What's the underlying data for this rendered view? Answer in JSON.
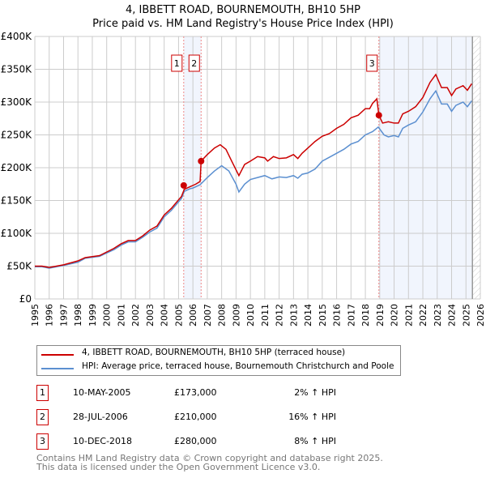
{
  "title": "4, IBBETT ROAD, BOURNEMOUTH, BH10 5HP",
  "subtitle": "Price paid vs. HM Land Registry's House Price Index (HPI)",
  "chart_data": {
    "type": "line",
    "ylim": [
      0,
      400000
    ],
    "xlim": [
      1995,
      2026
    ],
    "yticks": [
      {
        "v": 0,
        "label": "£0"
      },
      {
        "v": 50000,
        "label": "£50K"
      },
      {
        "v": 100000,
        "label": "£100K"
      },
      {
        "v": 150000,
        "label": "£150K"
      },
      {
        "v": 200000,
        "label": "£200K"
      },
      {
        "v": 250000,
        "label": "£250K"
      },
      {
        "v": 300000,
        "label": "£300K"
      },
      {
        "v": 350000,
        "label": "£350K"
      },
      {
        "v": 400000,
        "label": "£400K"
      }
    ],
    "xticks": [
      "1995",
      "1996",
      "1997",
      "1998",
      "1999",
      "2000",
      "2001",
      "2002",
      "2003",
      "2004",
      "2005",
      "2006",
      "2007",
      "2008",
      "2009",
      "2010",
      "2011",
      "2012",
      "2013",
      "2014",
      "2015",
      "2016",
      "2017",
      "2018",
      "2019",
      "2020",
      "2021",
      "2022",
      "2023",
      "2024",
      "2025",
      "2026"
    ],
    "series": [
      {
        "name": "4, IBBETT ROAD, BOURNEMOUTH, BH10 5HP (terraced house)",
        "color": "#cc0000",
        "points": [
          [
            1995,
            50
          ],
          [
            1995.5,
            50
          ],
          [
            1996,
            48
          ],
          [
            1997,
            52
          ],
          [
            1998,
            58
          ],
          [
            1998.5,
            63
          ],
          [
            1999.5,
            66
          ],
          [
            2000.5,
            77
          ],
          [
            2001,
            84
          ],
          [
            2001.5,
            89
          ],
          [
            2002,
            89
          ],
          [
            2002.5,
            96
          ],
          [
            2003,
            105
          ],
          [
            2003.5,
            111
          ],
          [
            2004,
            128
          ],
          [
            2004.5,
            138
          ],
          [
            2005,
            151
          ],
          [
            2005.2,
            156
          ],
          [
            2005.4,
            167
          ],
          [
            2005.8,
            171
          ],
          [
            2006,
            173
          ],
          [
            2006.2,
            175
          ],
          [
            2006.5,
            179
          ],
          [
            2006.57,
            210
          ],
          [
            2007,
            220
          ],
          [
            2007.5,
            230
          ],
          [
            2007.9,
            235
          ],
          [
            2008.3,
            228
          ],
          [
            2008.7,
            210
          ],
          [
            2009.2,
            188
          ],
          [
            2009.6,
            205
          ],
          [
            2010,
            210
          ],
          [
            2010.5,
            217
          ],
          [
            2011,
            215
          ],
          [
            2011.2,
            210
          ],
          [
            2011.6,
            217
          ],
          [
            2012,
            214
          ],
          [
            2012.5,
            215
          ],
          [
            2013,
            220
          ],
          [
            2013.3,
            214
          ],
          [
            2013.6,
            222
          ],
          [
            2014,
            230
          ],
          [
            2014.5,
            240
          ],
          [
            2015,
            248
          ],
          [
            2015.5,
            252
          ],
          [
            2016,
            260
          ],
          [
            2016.5,
            266
          ],
          [
            2017,
            276
          ],
          [
            2017.5,
            280
          ],
          [
            2018,
            290
          ],
          [
            2018.3,
            290
          ],
          [
            2018.5,
            298
          ],
          [
            2018.8,
            305
          ],
          [
            2018.94,
            280
          ],
          [
            2019.2,
            268
          ],
          [
            2019.6,
            270
          ],
          [
            2020,
            268
          ],
          [
            2020.3,
            268
          ],
          [
            2020.6,
            282
          ],
          [
            2021,
            286
          ],
          [
            2021.5,
            293
          ],
          [
            2022,
            307
          ],
          [
            2022.5,
            330
          ],
          [
            2022.9,
            342
          ],
          [
            2023.3,
            322
          ],
          [
            2023.7,
            322
          ],
          [
            2024,
            310
          ],
          [
            2024.3,
            320
          ],
          [
            2024.8,
            325
          ],
          [
            2025.1,
            318
          ],
          [
            2025.4,
            328
          ]
        ]
      },
      {
        "name": "HPI: Average price, terraced house, Bournemouth Christchurch and Poole",
        "color": "#5b8fd0",
        "points": [
          [
            1995,
            49
          ],
          [
            1995.5,
            49
          ],
          [
            1996,
            47
          ],
          [
            1997,
            51
          ],
          [
            1998,
            56
          ],
          [
            1998.5,
            62
          ],
          [
            1999.5,
            65
          ],
          [
            2000.5,
            75
          ],
          [
            2001,
            82
          ],
          [
            2001.5,
            87
          ],
          [
            2002,
            87
          ],
          [
            2002.5,
            94
          ],
          [
            2003,
            102
          ],
          [
            2003.5,
            108
          ],
          [
            2004,
            125
          ],
          [
            2004.5,
            135
          ],
          [
            2005,
            148
          ],
          [
            2005.2,
            153
          ],
          [
            2005.4,
            164
          ],
          [
            2005.8,
            168
          ],
          [
            2006,
            169
          ],
          [
            2006.5,
            174
          ],
          [
            2007,
            185
          ],
          [
            2007.5,
            195
          ],
          [
            2008,
            203
          ],
          [
            2008.5,
            195
          ],
          [
            2009,
            175
          ],
          [
            2009.2,
            163
          ],
          [
            2009.6,
            175
          ],
          [
            2010,
            182
          ],
          [
            2010.5,
            185
          ],
          [
            2011,
            188
          ],
          [
            2011.5,
            183
          ],
          [
            2012,
            186
          ],
          [
            2012.5,
            185
          ],
          [
            2013,
            188
          ],
          [
            2013.3,
            184
          ],
          [
            2013.6,
            190
          ],
          [
            2014,
            192
          ],
          [
            2014.5,
            198
          ],
          [
            2015,
            210
          ],
          [
            2015.5,
            216
          ],
          [
            2016,
            222
          ],
          [
            2016.5,
            228
          ],
          [
            2017,
            236
          ],
          [
            2017.5,
            240
          ],
          [
            2018,
            250
          ],
          [
            2018.5,
            255
          ],
          [
            2018.9,
            262
          ],
          [
            2019.3,
            250
          ],
          [
            2019.6,
            247
          ],
          [
            2020,
            249
          ],
          [
            2020.3,
            247
          ],
          [
            2020.6,
            260
          ],
          [
            2021,
            265
          ],
          [
            2021.5,
            270
          ],
          [
            2022,
            285
          ],
          [
            2022.5,
            305
          ],
          [
            2022.9,
            317
          ],
          [
            2023.3,
            297
          ],
          [
            2023.7,
            297
          ],
          [
            2024,
            286
          ],
          [
            2024.3,
            295
          ],
          [
            2024.8,
            300
          ],
          [
            2025.1,
            293
          ],
          [
            2025.4,
            302
          ]
        ]
      }
    ],
    "sales": [
      {
        "n": "1",
        "x": 2005.36,
        "y": 173
      },
      {
        "n": "2",
        "x": 2006.57,
        "y": 210
      },
      {
        "n": "3",
        "x": 2018.94,
        "y": 280
      }
    ],
    "shaded": [
      [
        2005.36,
        2006.57
      ],
      [
        2018.94,
        2025.45
      ]
    ],
    "forecast_start": 2025.45
  },
  "legend": [
    "4, IBBETT ROAD, BOURNEMOUTH, BH10 5HP (terraced house)",
    "HPI: Average price, terraced house, Bournemouth Christchurch and Poole"
  ],
  "transactions": [
    {
      "n": "1",
      "date": "10-MAY-2005",
      "price": "£173,000",
      "hpi": "2% ↑ HPI"
    },
    {
      "n": "2",
      "date": "28-JUL-2006",
      "price": "£210,000",
      "hpi": "16% ↑ HPI"
    },
    {
      "n": "3",
      "date": "10-DEC-2018",
      "price": "£280,000",
      "hpi": "8% ↑ HPI"
    }
  ],
  "footer": [
    "Contains HM Land Registry data © Crown copyright and database right 2025.",
    "This data is licensed under the Open Government Licence v3.0."
  ]
}
